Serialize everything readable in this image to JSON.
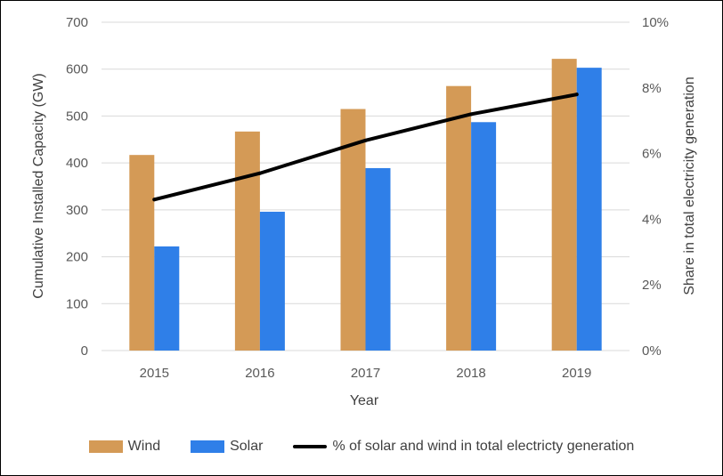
{
  "chart_data": {
    "type": "bar",
    "categories": [
      "2015",
      "2016",
      "2017",
      "2018",
      "2019"
    ],
    "series": [
      {
        "name": "Wind",
        "type": "bar",
        "axis": "left",
        "color": "#D49A56",
        "values": [
          417,
          467,
          515,
          564,
          622
        ]
      },
      {
        "name": "Solar",
        "type": "bar",
        "axis": "left",
        "color": "#2F7FE8",
        "values": [
          222,
          296,
          389,
          487,
          603
        ]
      },
      {
        "name": "% of solar and wind in total electricty generation",
        "type": "line",
        "axis": "right",
        "color": "#000000",
        "values": [
          4.6,
          5.4,
          6.4,
          7.2,
          7.8
        ]
      }
    ],
    "xlabel": "Year",
    "ylabel": "Cumulative Installed Capacity (GW)",
    "y2label": "Share in total electricity generation",
    "ylim": [
      0,
      700
    ],
    "y2lim": [
      0,
      10
    ],
    "yticks": [
      "0",
      "100",
      "200",
      "300",
      "400",
      "500",
      "600",
      "700"
    ],
    "y2ticks": [
      "0%",
      "2%",
      "4%",
      "6%",
      "8%",
      "10%"
    ],
    "grid": true,
    "legend_position": "bottom"
  }
}
